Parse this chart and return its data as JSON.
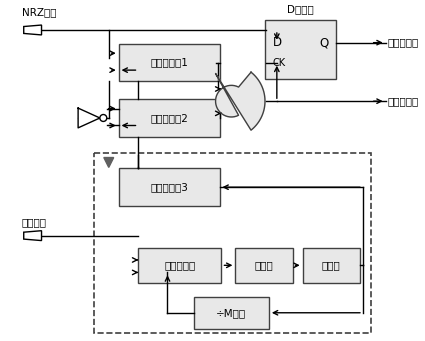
{
  "bg_color": "#ffffff",
  "line_color": "#000000",
  "box_fc": "#e8e8e8",
  "box_ec": "#404040",
  "font_size": 7.5,
  "dff_title": "D触发器",
  "dff_d": "D",
  "dff_q": "Q",
  "dff_ck": "CK",
  "label_nrz": "NRZ数据",
  "label_ref": "参考频率",
  "label_rec_data": "恢复的数据",
  "label_rec_clk": "恢复的时钟",
  "label_osc1": "门控振荡器1",
  "label_osc2": "门控振荡器2",
  "label_osc3": "门控振荡器3",
  "label_pfd": "鉴频鉴相器",
  "label_cp": "电荷泵",
  "label_lpf": "滤波器",
  "label_div": "÷M分频"
}
